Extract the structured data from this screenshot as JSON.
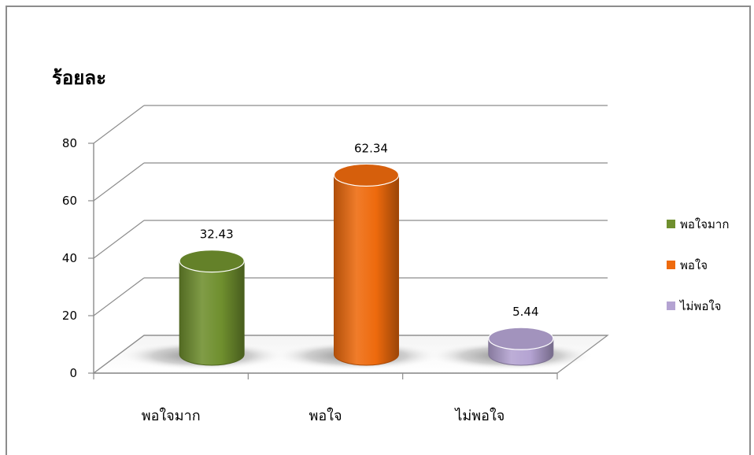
{
  "chart_data": {
    "type": "bar",
    "ylabel": "ร้อยละ",
    "categories": [
      "พอใจมาก",
      "พอใจ",
      "ไม่พอใจ"
    ],
    "values": [
      32.43,
      62.34,
      5.44
    ],
    "data_labels": [
      "32.43",
      "62.34",
      "5.44"
    ],
    "ylim": [
      0,
      80
    ],
    "yticks": [
      "0",
      "20",
      "40",
      "60",
      "80"
    ],
    "colors": [
      "#6f8f2e",
      "#ee6a0d",
      "#b4a3d2"
    ],
    "legend": [
      "พอใจมาก",
      "พอใจ",
      "ไม่พอใจ"
    ],
    "legend_position": "right",
    "grid": true,
    "style": "3d-cylinder"
  }
}
